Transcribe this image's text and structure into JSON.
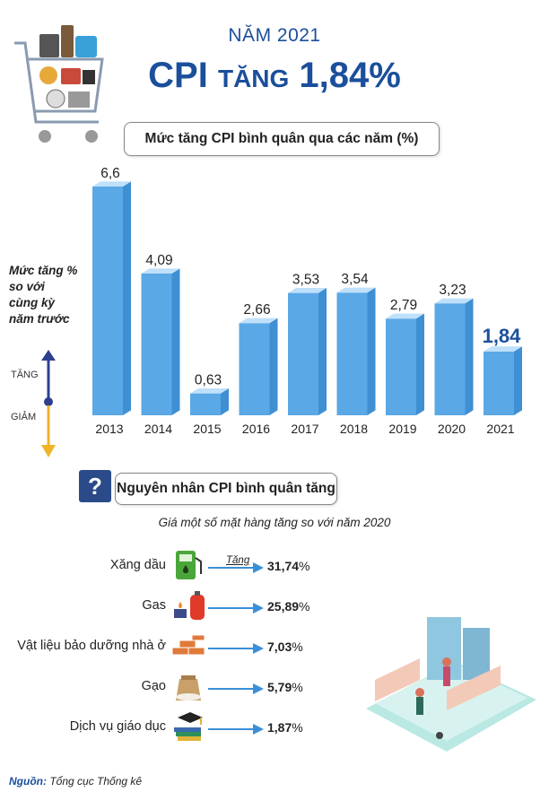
{
  "header": {
    "year_line": "NĂM 2021",
    "title_prefix": "CPI",
    "title_mid": "TĂNG",
    "title_value": "1,84%"
  },
  "chart_heading": "Mức tăng CPI bình quân qua các năm (%)",
  "y_axis": {
    "label_lines": [
      "Mức tăng %",
      "so với",
      "cùng kỳ",
      "năm trước"
    ],
    "up_label": "TĂNG",
    "down_label": "GIẢM"
  },
  "chart_data": {
    "type": "bar",
    "title": "Mức tăng CPI bình quân qua các năm (%)",
    "ylabel": "Mức tăng % so với cùng kỳ năm trước",
    "categories": [
      "2013",
      "2014",
      "2015",
      "2016",
      "2017",
      "2018",
      "2019",
      "2020",
      "2021"
    ],
    "values": [
      6.6,
      4.09,
      0.63,
      2.66,
      3.53,
      3.54,
      2.79,
      3.23,
      1.84
    ],
    "value_labels": [
      "6,6",
      "4,09",
      "0,63",
      "2,66",
      "3,53",
      "3,54",
      "2,79",
      "3,23",
      "1,84"
    ],
    "highlight_category": "2021",
    "grid": false,
    "colors": {
      "bar_front": "#5aa8e6",
      "bar_side": "#3f8fd3",
      "bar_top": "#bfe0fa",
      "highlight_label": "#1b4f9c"
    }
  },
  "causes": {
    "heading": "Nguyên nhân CPI bình quân tăng",
    "note": "Giá một số mặt hàng tăng so với năm 2020",
    "increase_label": "Tăng",
    "items": [
      {
        "label": "Xăng dầu",
        "value": "31,74",
        "unit": "%",
        "icon": "fuel-pump-icon"
      },
      {
        "label": "Gas",
        "value": "25,89",
        "unit": "%",
        "icon": "gas-cylinder-icon"
      },
      {
        "label": "Vật liệu bảo dưỡng nhà ở",
        "value": "7,03",
        "unit": "%",
        "icon": "bricks-icon"
      },
      {
        "label": "Gạo",
        "value": "5,79",
        "unit": "%",
        "icon": "rice-sack-icon"
      },
      {
        "label": "Dịch vụ giáo dục",
        "value": "1,87",
        "unit": "%",
        "icon": "graduation-books-icon"
      }
    ]
  },
  "source": {
    "label": "Nguồn:",
    "text": "Tổng cục Thống kê"
  },
  "colors": {
    "brand_blue": "#1b4f9c",
    "arrow_blue": "#3a8fd8",
    "up_arrow": "#2d3f8f",
    "down_arrow": "#f0b429"
  }
}
